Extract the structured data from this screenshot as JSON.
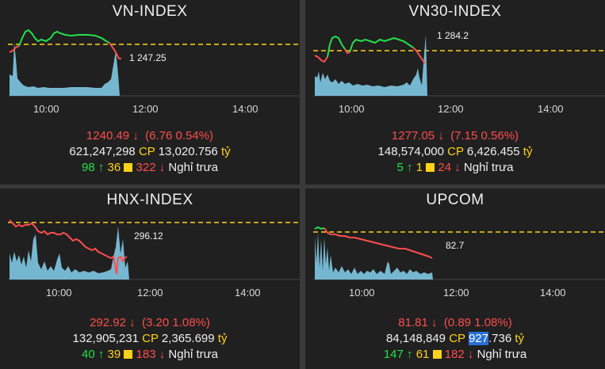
{
  "colors": {
    "up": "#22e04a",
    "down": "#ff4d4d",
    "ref": "#ffd21a",
    "volume": "#7ec8e3"
  },
  "ticks": [
    "10:00",
    "12:00",
    "14:00"
  ],
  "panels": [
    {
      "title": "VN-INDEX",
      "last_label": "1 247.25",
      "value": "1240.49",
      "change": "(6.76  0.54%)",
      "volume": "621,247,298",
      "cp": "CP",
      "turnover": "13,020.756",
      "unit": "tỷ",
      "up": "98",
      "flat": "36",
      "down": "322",
      "status": "Nghỉ trưa"
    },
    {
      "title": "VN30-INDEX",
      "last_label": "1 284.2",
      "value": "1277.05",
      "change": "(7.15  0.56%)",
      "volume": "148,574,000",
      "cp": "CP",
      "turnover": "6,426.455",
      "unit": "tỷ",
      "up": "5",
      "flat": "1",
      "down": "24",
      "status": "Nghỉ trưa"
    },
    {
      "title": "HNX-INDEX",
      "last_label": "296.12",
      "value": "292.92",
      "change": "(3.20  1.08%)",
      "volume": "132,905,231",
      "cp": "CP",
      "turnover": "2,365.699",
      "unit": "tỷ",
      "up": "40",
      "flat": "39",
      "down": "183",
      "status": "Nghỉ trưa"
    },
    {
      "title": "UPCOM",
      "last_label": "82.7",
      "value": "81.81",
      "change": "(0.89  1.08%)",
      "volume": "84,148,849",
      "cp": "CP",
      "turnover_hl": "927",
      "turnover_rest": ".736",
      "unit": "tỷ",
      "up": "147",
      "flat": "61",
      "down": "182",
      "status": "Nghỉ trưa"
    }
  ]
}
